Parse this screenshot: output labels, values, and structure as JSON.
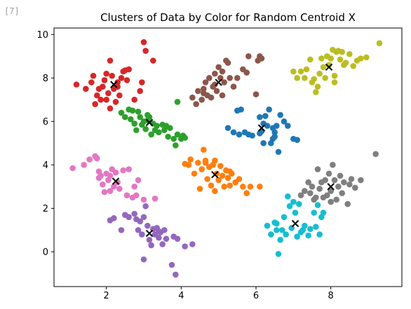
{
  "cell": {
    "label": "[7]"
  },
  "chart_data": {
    "type": "scatter",
    "title": "Clusters of Data by Color for Random Centroid X",
    "xlabel": "",
    "ylabel": "",
    "xlim": [
      0.6,
      9.9
    ],
    "ylim": [
      -1.6,
      10.3
    ],
    "xticks": [
      2,
      4,
      6,
      8
    ],
    "yticks": [
      0,
      2,
      4,
      6,
      8,
      10
    ],
    "grid": false,
    "legend": "none",
    "centroid_marker": "x",
    "centroid_color": "#000000",
    "clusters": [
      {
        "color": "#d62728",
        "centroid": [
          2.2,
          7.7
        ],
        "points": [
          [
            1.2,
            7.7
          ],
          [
            1.45,
            7.5
          ],
          [
            1.6,
            7.8
          ],
          [
            1.65,
            8.1
          ],
          [
            1.7,
            6.8
          ],
          [
            1.75,
            7.2
          ],
          [
            1.8,
            7.5
          ],
          [
            1.85,
            7.0
          ],
          [
            1.9,
            7.6
          ],
          [
            1.95,
            7.9
          ],
          [
            2.0,
            8.2
          ],
          [
            2.05,
            7.3
          ],
          [
            2.1,
            8.8
          ],
          [
            2.1,
            6.6
          ],
          [
            2.15,
            8.1
          ],
          [
            2.2,
            7.5
          ],
          [
            2.25,
            6.9
          ],
          [
            2.3,
            7.6
          ],
          [
            2.35,
            7.2
          ],
          [
            2.4,
            8.0
          ],
          [
            2.45,
            8.3
          ],
          [
            2.5,
            8.35
          ],
          [
            2.55,
            7.9
          ],
          [
            2.6,
            8.4
          ],
          [
            2.75,
            7.0
          ],
          [
            2.9,
            7.4
          ],
          [
            2.95,
            7.8
          ],
          [
            3.0,
            9.65
          ],
          [
            3.05,
            9.25
          ],
          [
            3.25,
            8.8
          ],
          [
            2.0,
            7.0
          ],
          [
            2.3,
            7.8
          ]
        ]
      },
      {
        "color": "#8c564b",
        "centroid": [
          5.0,
          7.8
        ],
        "points": [
          [
            4.3,
            7.1
          ],
          [
            4.4,
            6.8
          ],
          [
            4.45,
            7.4
          ],
          [
            4.55,
            7.0
          ],
          [
            4.6,
            7.5
          ],
          [
            4.65,
            7.8
          ],
          [
            4.7,
            7.2
          ],
          [
            4.75,
            8.0
          ],
          [
            4.8,
            7.1
          ],
          [
            4.85,
            7.6
          ],
          [
            4.9,
            8.2
          ],
          [
            4.95,
            7.4
          ],
          [
            5.0,
            8.5
          ],
          [
            5.05,
            8.0
          ],
          [
            5.1,
            8.3
          ],
          [
            5.15,
            7.8
          ],
          [
            5.2,
            8.8
          ],
          [
            5.25,
            8.7
          ],
          [
            5.3,
            8.0
          ],
          [
            5.4,
            7.6
          ],
          [
            5.5,
            8.0
          ],
          [
            5.65,
            8.4
          ],
          [
            5.75,
            8.25
          ],
          [
            5.8,
            9.0
          ],
          [
            6.0,
            7.25
          ],
          [
            6.05,
            8.8
          ],
          [
            6.1,
            9.0
          ],
          [
            6.15,
            8.9
          ],
          [
            4.9,
            7.7
          ],
          [
            5.1,
            7.2
          ],
          [
            4.6,
            7.3
          ]
        ]
      },
      {
        "color": "#bcbd22",
        "centroid": [
          7.95,
          8.5
        ],
        "points": [
          [
            7.0,
            8.3
          ],
          [
            7.2,
            8.3
          ],
          [
            7.3,
            8.0
          ],
          [
            7.35,
            8.4
          ],
          [
            7.45,
            8.85
          ],
          [
            7.5,
            7.8
          ],
          [
            7.55,
            7.95
          ],
          [
            7.6,
            7.35
          ],
          [
            7.65,
            7.6
          ],
          [
            7.7,
            8.2
          ],
          [
            7.75,
            8.9
          ],
          [
            7.8,
            8.5
          ],
          [
            7.85,
            8.0
          ],
          [
            7.9,
            9.0
          ],
          [
            7.95,
            8.6
          ],
          [
            8.0,
            8.9
          ],
          [
            8.05,
            9.3
          ],
          [
            8.1,
            8.1
          ],
          [
            8.15,
            9.2
          ],
          [
            8.2,
            9.25
          ],
          [
            8.25,
            8.85
          ],
          [
            8.3,
            9.2
          ],
          [
            8.35,
            8.6
          ],
          [
            8.4,
            8.7
          ],
          [
            8.5,
            9.1
          ],
          [
            8.6,
            8.55
          ],
          [
            8.7,
            8.8
          ],
          [
            8.8,
            8.9
          ],
          [
            8.95,
            8.95
          ],
          [
            9.3,
            9.6
          ],
          [
            8.1,
            7.8
          ],
          [
            7.1,
            8.0
          ]
        ]
      },
      {
        "color": "#2ca02c",
        "centroid": [
          3.15,
          5.95
        ],
        "points": [
          [
            2.4,
            6.4
          ],
          [
            2.5,
            6.2
          ],
          [
            2.6,
            6.55
          ],
          [
            2.65,
            6.1
          ],
          [
            2.7,
            6.5
          ],
          [
            2.75,
            5.9
          ],
          [
            2.8,
            5.6
          ],
          [
            2.85,
            6.45
          ],
          [
            2.9,
            6.2
          ],
          [
            2.95,
            5.85
          ],
          [
            3.0,
            6.0
          ],
          [
            3.05,
            5.65
          ],
          [
            3.1,
            6.05
          ],
          [
            3.15,
            6.2
          ],
          [
            3.2,
            5.4
          ],
          [
            3.25,
            5.9
          ],
          [
            3.3,
            5.6
          ],
          [
            3.35,
            5.8
          ],
          [
            3.4,
            5.5
          ],
          [
            3.5,
            5.85
          ],
          [
            3.55,
            5.6
          ],
          [
            3.6,
            5.8
          ],
          [
            3.65,
            5.3
          ],
          [
            3.7,
            5.7
          ],
          [
            3.8,
            5.2
          ],
          [
            3.85,
            4.9
          ],
          [
            3.9,
            5.4
          ],
          [
            4.0,
            5.2
          ],
          [
            4.05,
            5.35
          ],
          [
            4.1,
            5.25
          ],
          [
            3.9,
            6.9
          ],
          [
            3.1,
            6.3
          ]
        ]
      },
      {
        "color": "#1f77b4",
        "centroid": [
          6.15,
          5.7
        ],
        "points": [
          [
            5.25,
            5.7
          ],
          [
            5.4,
            5.5
          ],
          [
            5.5,
            6.5
          ],
          [
            5.55,
            5.4
          ],
          [
            5.6,
            6.55
          ],
          [
            5.7,
            5.5
          ],
          [
            5.8,
            5.4
          ],
          [
            5.9,
            5.35
          ],
          [
            6.1,
            6.2
          ],
          [
            6.15,
            5.55
          ],
          [
            6.2,
            5.9
          ],
          [
            6.25,
            6.25
          ],
          [
            6.3,
            5.8
          ],
          [
            6.35,
            6.55
          ],
          [
            6.4,
            5.0
          ],
          [
            6.45,
            5.2
          ],
          [
            6.5,
            5.5
          ],
          [
            6.55,
            5.8
          ],
          [
            6.6,
            4.6
          ],
          [
            6.65,
            6.3
          ],
          [
            6.75,
            6.0
          ],
          [
            6.85,
            5.8
          ],
          [
            7.0,
            5.2
          ],
          [
            7.1,
            5.15
          ],
          [
            6.2,
            5.0
          ],
          [
            6.1,
            5.45
          ],
          [
            6.5,
            5.3
          ],
          [
            6.45,
            5.7
          ]
        ]
      },
      {
        "color": "#e377c2",
        "centroid": [
          2.25,
          3.25
        ],
        "points": [
          [
            1.1,
            3.85
          ],
          [
            1.4,
            4.0
          ],
          [
            1.55,
            4.25
          ],
          [
            1.7,
            4.4
          ],
          [
            1.75,
            4.3
          ],
          [
            1.8,
            3.7
          ],
          [
            1.85,
            3.5
          ],
          [
            1.9,
            3.1
          ],
          [
            1.95,
            2.75
          ],
          [
            2.0,
            3.6
          ],
          [
            2.05,
            3.3
          ],
          [
            2.1,
            2.8
          ],
          [
            2.15,
            3.8
          ],
          [
            2.2,
            3.0
          ],
          [
            2.25,
            3.65
          ],
          [
            2.3,
            3.2
          ],
          [
            2.35,
            2.9
          ],
          [
            2.45,
            3.75
          ],
          [
            2.55,
            2.6
          ],
          [
            2.6,
            3.8
          ],
          [
            2.7,
            2.5
          ],
          [
            2.75,
            3.0
          ],
          [
            2.8,
            2.6
          ],
          [
            2.85,
            3.3
          ],
          [
            3.0,
            2.4
          ],
          [
            3.3,
            2.45
          ],
          [
            1.8,
            3.4
          ],
          [
            2.1,
            3.5
          ]
        ]
      },
      {
        "color": "#ff7f0e",
        "centroid": [
          4.9,
          3.55
        ],
        "points": [
          [
            4.1,
            4.05
          ],
          [
            4.2,
            4.0
          ],
          [
            4.25,
            4.25
          ],
          [
            4.35,
            3.6
          ],
          [
            4.45,
            4.1
          ],
          [
            4.55,
            3.8
          ],
          [
            4.6,
            4.7
          ],
          [
            4.65,
            4.2
          ],
          [
            4.7,
            3.35
          ],
          [
            4.75,
            3.9
          ],
          [
            4.8,
            3.05
          ],
          [
            4.85,
            4.0
          ],
          [
            4.9,
            4.2
          ],
          [
            4.95,
            3.6
          ],
          [
            5.0,
            3.3
          ],
          [
            5.05,
            3.95
          ],
          [
            5.1,
            3.5
          ],
          [
            5.15,
            3.0
          ],
          [
            5.2,
            3.75
          ],
          [
            5.25,
            3.4
          ],
          [
            5.3,
            3.05
          ],
          [
            5.35,
            3.6
          ],
          [
            5.45,
            3.2
          ],
          [
            5.55,
            3.35
          ],
          [
            5.65,
            3.0
          ],
          [
            5.75,
            2.7
          ],
          [
            5.85,
            3.0
          ],
          [
            6.1,
            3.0
          ],
          [
            4.5,
            2.9
          ],
          [
            4.9,
            2.8
          ],
          [
            4.65,
            4.1
          ],
          [
            5.3,
            3.7
          ]
        ]
      },
      {
        "color": "#7f7f7f",
        "centroid": [
          8.0,
          3.0
        ],
        "points": [
          [
            7.2,
            2.6
          ],
          [
            7.3,
            2.8
          ],
          [
            7.4,
            3.2
          ],
          [
            7.45,
            2.7
          ],
          [
            7.5,
            3.0
          ],
          [
            7.55,
            2.4
          ],
          [
            7.65,
            3.8
          ],
          [
            7.7,
            2.9
          ],
          [
            7.75,
            3.2
          ],
          [
            7.8,
            2.5
          ],
          [
            7.85,
            3.3
          ],
          [
            7.9,
            2.6
          ],
          [
            7.95,
            3.6
          ],
          [
            8.0,
            2.8
          ],
          [
            8.05,
            4.0
          ],
          [
            8.1,
            3.3
          ],
          [
            8.15,
            2.4
          ],
          [
            8.2,
            3.0
          ],
          [
            8.25,
            3.5
          ],
          [
            8.3,
            2.7
          ],
          [
            8.35,
            3.2
          ],
          [
            8.45,
            2.2
          ],
          [
            8.5,
            3.1
          ],
          [
            8.55,
            3.35
          ],
          [
            8.65,
            2.95
          ],
          [
            8.8,
            3.3
          ],
          [
            9.2,
            4.5
          ],
          [
            7.6,
            2.5
          ],
          [
            8.0,
            2.3
          ]
        ]
      },
      {
        "color": "#9467bd",
        "centroid": [
          3.15,
          0.85
        ],
        "points": [
          [
            2.1,
            1.45
          ],
          [
            2.2,
            1.55
          ],
          [
            2.4,
            1.0
          ],
          [
            2.5,
            1.7
          ],
          [
            2.6,
            1.6
          ],
          [
            2.75,
            1.75
          ],
          [
            2.8,
            1.5
          ],
          [
            2.85,
            1.0
          ],
          [
            2.9,
            1.4
          ],
          [
            2.95,
            0.8
          ],
          [
            3.0,
            1.6
          ],
          [
            3.05,
            2.1
          ],
          [
            3.1,
            1.2
          ],
          [
            3.15,
            0.55
          ],
          [
            3.2,
            0.3
          ],
          [
            3.25,
            1.05
          ],
          [
            3.3,
            0.8
          ],
          [
            3.35,
            1.1
          ],
          [
            3.4,
            0.65
          ],
          [
            3.45,
            0.9
          ],
          [
            3.5,
            0.35
          ],
          [
            3.55,
            1.0
          ],
          [
            3.6,
            0.6
          ],
          [
            3.75,
            -0.6
          ],
          [
            3.8,
            0.7
          ],
          [
            3.85,
            -1.05
          ],
          [
            3.9,
            0.6
          ],
          [
            4.1,
            0.25
          ],
          [
            4.3,
            0.35
          ],
          [
            3.0,
            -0.35
          ],
          [
            3.4,
            0.95
          ]
        ]
      },
      {
        "color": "#17becf",
        "centroid": [
          7.05,
          1.3
        ],
        "points": [
          [
            6.3,
            1.2
          ],
          [
            6.4,
            0.8
          ],
          [
            6.5,
            1.35
          ],
          [
            6.55,
            1.0
          ],
          [
            6.6,
            -0.1
          ],
          [
            6.65,
            0.55
          ],
          [
            6.7,
            1.0
          ],
          [
            6.75,
            1.6
          ],
          [
            6.8,
            0.8
          ],
          [
            6.85,
            2.55
          ],
          [
            6.9,
            2.1
          ],
          [
            6.95,
            1.1
          ],
          [
            7.0,
            2.3
          ],
          [
            7.05,
            1.8
          ],
          [
            7.1,
            0.7
          ],
          [
            7.15,
            2.2
          ],
          [
            7.2,
            0.9
          ],
          [
            7.3,
            1.2
          ],
          [
            7.4,
            0.75
          ],
          [
            7.45,
            1.05
          ],
          [
            7.55,
            1.8
          ],
          [
            7.6,
            1.15
          ],
          [
            7.7,
            0.8
          ],
          [
            7.75,
            1.6
          ],
          [
            7.8,
            1.8
          ],
          [
            7.65,
            2.15
          ],
          [
            6.55,
            1.3
          ],
          [
            7.25,
            1.0
          ]
        ]
      }
    ]
  }
}
